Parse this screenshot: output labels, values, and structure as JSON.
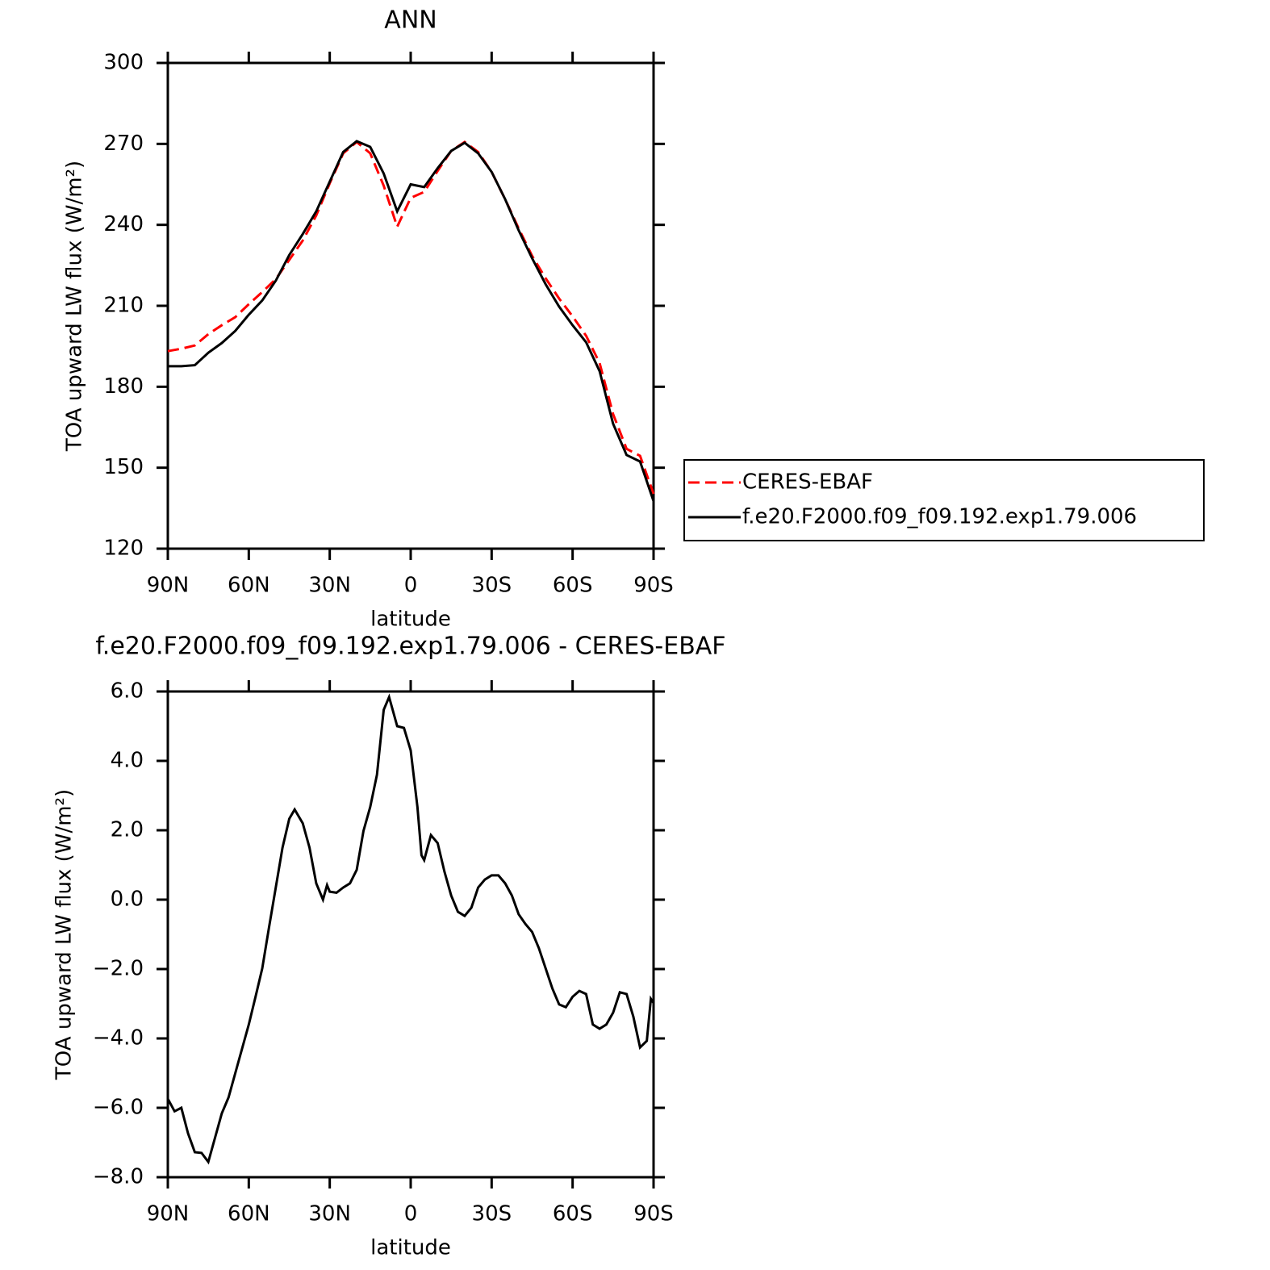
{
  "chart_data": [
    {
      "type": "line",
      "title": "ANN",
      "xlabel": "latitude",
      "ylabel": "TOA upward LW flux (W/m²)",
      "x": [
        90,
        85,
        80,
        75,
        70,
        65,
        60,
        55,
        50,
        45,
        40,
        35,
        30,
        25,
        20,
        15,
        10,
        5,
        0,
        -5,
        -10,
        -15,
        -20,
        -25,
        -30,
        -35,
        -40,
        -45,
        -50,
        -55,
        -60,
        -65,
        -70,
        -75,
        -80,
        -85,
        -90
      ],
      "xlim": [
        90,
        -90
      ],
      "xticks": [
        {
          "value": 90,
          "label": "90N"
        },
        {
          "value": 60,
          "label": "60N"
        },
        {
          "value": 30,
          "label": "30N"
        },
        0,
        {
          "value": -30,
          "label": "30S"
        },
        {
          "value": -60,
          "label": "60S"
        },
        {
          "value": -90,
          "label": "90S"
        }
      ],
      "ylim": [
        120,
        300
      ],
      "yticks": [
        120,
        150,
        180,
        210,
        240,
        270,
        300
      ],
      "legend": "right",
      "series": [
        {
          "name": "CERES-EBAF",
          "color": "#ff0000",
          "dashed": true,
          "values": [
            193.2,
            194.1,
            195.3,
            199.5,
            202.8,
            205.8,
            210.6,
            215.1,
            219.9,
            227,
            234.2,
            243.5,
            255.4,
            266.5,
            270.7,
            266.5,
            254.5,
            239.3,
            250,
            252.2,
            260,
            267.4,
            270.7,
            267,
            259.6,
            249.5,
            238.7,
            228.5,
            220.2,
            212.7,
            206.1,
            198.9,
            188.8,
            169.9,
            157,
            154.4,
            140.3
          ]
        },
        {
          "name": "f.e20.F2000.f09_f09.192.exp1.79.006",
          "color": "#000000",
          "dashed": false,
          "values": [
            187.6,
            187.6,
            188,
            192.6,
            196.2,
            200.7,
            206.7,
            212,
            219.3,
            228.8,
            236.6,
            245,
            256,
            267,
            271,
            268.9,
            259,
            245,
            255,
            254,
            261,
            267.4,
            270.4,
            266.5,
            259.6,
            249.5,
            238,
            227.6,
            218,
            209.7,
            202.8,
            196.5,
            185.8,
            166.3,
            154.7,
            152.3,
            137.6
          ]
        }
      ]
    },
    {
      "type": "line",
      "title": "f.e20.F2000.f09_f09.192.exp1.79.006 - CERES-EBAF",
      "xlabel": "latitude",
      "ylabel": "TOA upward LW flux (W/m²)",
      "x": [
        90,
        87.5,
        85,
        82.5,
        80,
        77.5,
        75,
        72.5,
        70,
        67.5,
        65,
        62.5,
        60,
        57.5,
        55,
        52.5,
        50,
        47.5,
        45,
        43,
        40,
        37.5,
        35,
        32.5,
        31,
        30,
        27.5,
        25,
        22.5,
        20,
        17.5,
        15,
        12.5,
        10,
        8,
        5,
        2.5,
        0,
        -2.5,
        -4,
        -5,
        -7.5,
        -10,
        -12.5,
        -15,
        -17.5,
        -20,
        -22.5,
        -25,
        -27.5,
        -30,
        -32.5,
        -35,
        -37.5,
        -40,
        -42.5,
        -45,
        -47.5,
        -50,
        -52.5,
        -55,
        -57.5,
        -60,
        -62.5,
        -65,
        -67.5,
        -70,
        -72.5,
        -75,
        -77.5,
        -80,
        -82.5,
        -85,
        -87.5,
        -89,
        -90
      ],
      "xlim": [
        90,
        -90
      ],
      "xticks": [
        {
          "value": 90,
          "label": "90N"
        },
        {
          "value": 60,
          "label": "60N"
        },
        {
          "value": 30,
          "label": "30N"
        },
        0,
        {
          "value": -30,
          "label": "30S"
        },
        {
          "value": -60,
          "label": "60S"
        },
        {
          "value": -90,
          "label": "90S"
        }
      ],
      "ylim": [
        -8,
        6
      ],
      "yticks": [
        {
          "value": -8,
          "label": "−8.0"
        },
        {
          "value": -6,
          "label": "−6.0"
        },
        {
          "value": -4,
          "label": "−4.0"
        },
        {
          "value": -2,
          "label": "−2.0"
        },
        {
          "value": 0,
          "label": "0.0"
        },
        {
          "value": 2,
          "label": "2.0"
        },
        {
          "value": 4,
          "label": "4.0"
        },
        {
          "value": 6,
          "label": "6.0"
        }
      ],
      "color": "#000000",
      "values": [
        -5.74,
        -6.1,
        -6.0,
        -6.74,
        -7.28,
        -7.3,
        -7.56,
        -6.86,
        -6.16,
        -5.7,
        -5.0,
        -4.3,
        -3.6,
        -2.8,
        -1.98,
        -0.8,
        0.35,
        1.5,
        2.33,
        2.6,
        2.2,
        1.5,
        0.47,
        0.0,
        0.42,
        0.23,
        0.2,
        0.35,
        0.47,
        0.86,
        1.98,
        2.67,
        3.6,
        5.47,
        5.84,
        5.0,
        4.95,
        4.3,
        2.67,
        1.28,
        1.14,
        1.86,
        1.63,
        0.81,
        0.12,
        -0.35,
        -0.47,
        -0.23,
        0.35,
        0.58,
        0.7,
        0.7,
        0.47,
        0.12,
        -0.42,
        -0.7,
        -0.93,
        -1.4,
        -1.98,
        -2.56,
        -3.02,
        -3.1,
        -2.8,
        -2.63,
        -2.72,
        -3.6,
        -3.72,
        -3.6,
        -3.26,
        -2.67,
        -2.72,
        -3.37,
        -4.26,
        -4.07,
        -2.86,
        -2.98
      ]
    }
  ]
}
